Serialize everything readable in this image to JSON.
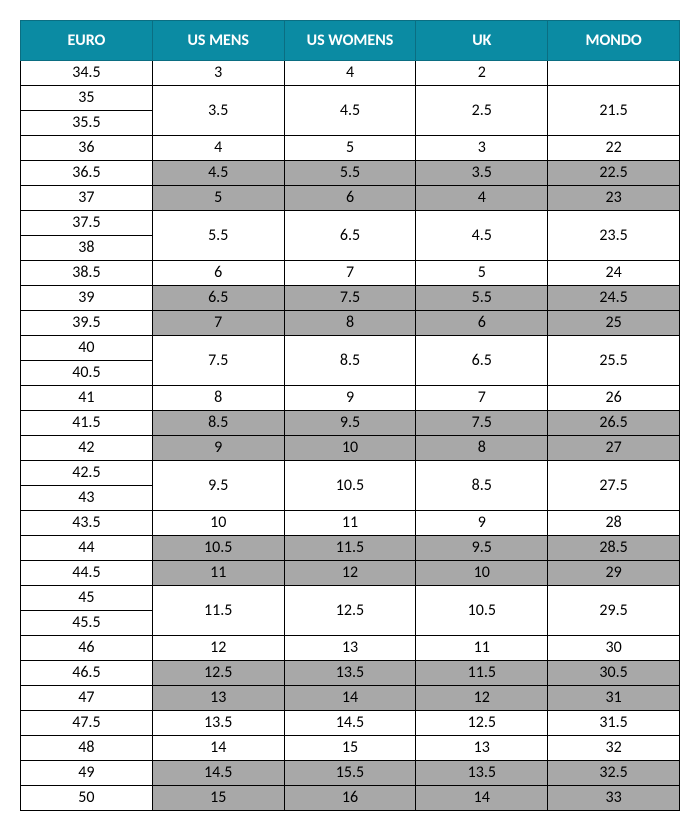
{
  "colors": {
    "header_bg": "#0b8ba3",
    "header_fg": "#ffffff",
    "row_white": "#ffffff",
    "row_grey": "#a8a8a8",
    "border": "#000000"
  },
  "typography": {
    "header_fontsize": 16,
    "body_fontsize": 16,
    "font_family": "Calibri"
  },
  "columns": [
    "EURO",
    "US MENS",
    "US WOMENS",
    "UK",
    "MONDO"
  ],
  "euro_values": [
    "34.5",
    "35",
    "35.5",
    "36",
    "36.5",
    "37",
    "37.5",
    "38",
    "38.5",
    "39",
    "39.5",
    "40",
    "40.5",
    "41",
    "41.5",
    "42",
    "42.5",
    "43",
    "43.5",
    "44",
    "44.5",
    "45",
    "45.5",
    "46",
    "46.5",
    "47",
    "47.5",
    "48",
    "49",
    "50"
  ],
  "data_rows": [
    {
      "span": 1,
      "shade": "white",
      "us_mens": "3",
      "us_womens": "4",
      "uk": "2",
      "mondo": ""
    },
    {
      "span": 2,
      "shade": "white",
      "us_mens": "3.5",
      "us_womens": "4.5",
      "uk": "2.5",
      "mondo": "21.5"
    },
    {
      "span": 1,
      "shade": "white",
      "us_mens": "4",
      "us_womens": "5",
      "uk": "3",
      "mondo": "22"
    },
    {
      "span": 1,
      "shade": "grey",
      "us_mens": "4.5",
      "us_womens": "5.5",
      "uk": "3.5",
      "mondo": "22.5"
    },
    {
      "span": 1,
      "shade": "grey",
      "us_mens": "5",
      "us_womens": "6",
      "uk": "4",
      "mondo": "23"
    },
    {
      "span": 2,
      "shade": "white",
      "us_mens": "5.5",
      "us_womens": "6.5",
      "uk": "4.5",
      "mondo": "23.5"
    },
    {
      "span": 1,
      "shade": "white",
      "us_mens": "6",
      "us_womens": "7",
      "uk": "5",
      "mondo": "24"
    },
    {
      "span": 1,
      "shade": "grey",
      "us_mens": "6.5",
      "us_womens": "7.5",
      "uk": "5.5",
      "mondo": "24.5"
    },
    {
      "span": 1,
      "shade": "grey",
      "us_mens": "7",
      "us_womens": "8",
      "uk": "6",
      "mondo": "25"
    },
    {
      "span": 2,
      "shade": "white",
      "us_mens": "7.5",
      "us_womens": "8.5",
      "uk": "6.5",
      "mondo": "25.5"
    },
    {
      "span": 1,
      "shade": "white",
      "us_mens": "8",
      "us_womens": "9",
      "uk": "7",
      "mondo": "26"
    },
    {
      "span": 1,
      "shade": "grey",
      "us_mens": "8.5",
      "us_womens": "9.5",
      "uk": "7.5",
      "mondo": "26.5"
    },
    {
      "span": 1,
      "shade": "grey",
      "us_mens": "9",
      "us_womens": "10",
      "uk": "8",
      "mondo": "27"
    },
    {
      "span": 2,
      "shade": "white",
      "us_mens": "9.5",
      "us_womens": "10.5",
      "uk": "8.5",
      "mondo": "27.5"
    },
    {
      "span": 1,
      "shade": "white",
      "us_mens": "10",
      "us_womens": "11",
      "uk": "9",
      "mondo": "28"
    },
    {
      "span": 1,
      "shade": "grey",
      "us_mens": "10.5",
      "us_womens": "11.5",
      "uk": "9.5",
      "mondo": "28.5"
    },
    {
      "span": 1,
      "shade": "grey",
      "us_mens": "11",
      "us_womens": "12",
      "uk": "10",
      "mondo": "29"
    },
    {
      "span": 2,
      "shade": "white",
      "us_mens": "11.5",
      "us_womens": "12.5",
      "uk": "10.5",
      "mondo": "29.5"
    },
    {
      "span": 1,
      "shade": "white",
      "us_mens": "12",
      "us_womens": "13",
      "uk": "11",
      "mondo": "30"
    },
    {
      "span": 1,
      "shade": "grey",
      "us_mens": "12.5",
      "us_womens": "13.5",
      "uk": "11.5",
      "mondo": "30.5"
    },
    {
      "span": 1,
      "shade": "grey",
      "us_mens": "13",
      "us_womens": "14",
      "uk": "12",
      "mondo": "31"
    },
    {
      "span": 1,
      "shade": "white",
      "us_mens": "13.5",
      "us_womens": "14.5",
      "uk": "12.5",
      "mondo": "31.5"
    },
    {
      "span": 1,
      "shade": "white",
      "us_mens": "14",
      "us_womens": "15",
      "uk": "13",
      "mondo": "32"
    },
    {
      "span": 1,
      "shade": "grey",
      "us_mens": "14.5",
      "us_womens": "15.5",
      "uk": "13.5",
      "mondo": "32.5"
    },
    {
      "span": 1,
      "shade": "grey",
      "us_mens": "15",
      "us_womens": "16",
      "uk": "14",
      "mondo": "33"
    }
  ]
}
